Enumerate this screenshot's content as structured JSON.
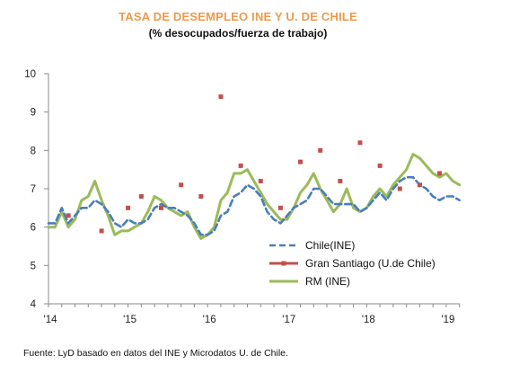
{
  "chart_data": {
    "type": "line",
    "title": "TASA DE DESEMPLEO INE Y U. DE CHILE",
    "subtitle": "(% desocupados/fuerza de trabajo)",
    "source": "Fuente: LyD basado en datos del INE y Microdatos U. de Chile.",
    "ylim": [
      4,
      10
    ],
    "yticks": [
      "4",
      "5",
      "6",
      "7",
      "8",
      "9",
      "10"
    ],
    "ytick_values": [
      4,
      5,
      6,
      7,
      8,
      9,
      10
    ],
    "xticks": [
      "'14",
      "'15",
      "'16",
      "'17",
      "'18",
      "'19"
    ],
    "xtick_values": [
      2014,
      2015,
      2016,
      2017,
      2018,
      2019
    ],
    "xlim": [
      2014,
      2019.17
    ],
    "grid": false,
    "legend": "center-right",
    "series": [
      {
        "name": "Chile(INE)",
        "style": "dashed",
        "color": "#4A7EBB",
        "x": [
          2014.0,
          2014.083,
          2014.167,
          2014.25,
          2014.333,
          2014.417,
          2014.5,
          2014.583,
          2014.667,
          2014.75,
          2014.833,
          2014.917,
          2015.0,
          2015.083,
          2015.167,
          2015.25,
          2015.333,
          2015.417,
          2015.5,
          2015.583,
          2015.667,
          2015.75,
          2015.833,
          2015.917,
          2016.0,
          2016.083,
          2016.167,
          2016.25,
          2016.333,
          2016.417,
          2016.5,
          2016.583,
          2016.667,
          2016.75,
          2016.833,
          2016.917,
          2017.0,
          2017.083,
          2017.167,
          2017.25,
          2017.333,
          2017.417,
          2017.5,
          2017.583,
          2017.667,
          2017.75,
          2017.833,
          2017.917,
          2018.0,
          2018.083,
          2018.167,
          2018.25,
          2018.333,
          2018.417,
          2018.5,
          2018.583,
          2018.667,
          2018.75,
          2018.833,
          2018.917,
          2019.0,
          2019.083,
          2019.167
        ],
        "y": [
          6.1,
          6.1,
          6.5,
          6.1,
          6.3,
          6.5,
          6.5,
          6.7,
          6.6,
          6.4,
          6.1,
          6.0,
          6.2,
          6.1,
          6.1,
          6.2,
          6.5,
          6.6,
          6.5,
          6.5,
          6.4,
          6.3,
          6.1,
          5.8,
          5.8,
          5.9,
          6.3,
          6.4,
          6.8,
          6.9,
          7.1,
          7.0,
          6.8,
          6.4,
          6.2,
          6.1,
          6.3,
          6.5,
          6.6,
          6.7,
          7.0,
          7.0,
          6.8,
          6.6,
          6.6,
          6.6,
          6.6,
          6.4,
          6.5,
          6.7,
          6.9,
          6.7,
          7.0,
          7.2,
          7.3,
          7.3,
          7.1,
          7.0,
          6.8,
          6.7,
          6.8,
          6.8,
          6.7
        ]
      },
      {
        "name": "Gran  Santiago (U.de Chile)",
        "style": "markers",
        "color": "#C0504D",
        "x": [
          2014.25,
          2014.667,
          2015.0,
          2015.167,
          2015.417,
          2015.667,
          2015.917,
          2016.167,
          2016.417,
          2016.667,
          2016.917,
          2017.167,
          2017.417,
          2017.667,
          2017.917,
          2018.167,
          2018.417,
          2018.667,
          2018.917
        ],
        "y": [
          6.3,
          5.9,
          6.5,
          6.8,
          6.5,
          7.1,
          6.8,
          9.4,
          7.6,
          7.2,
          6.5,
          7.7,
          8.0,
          7.2,
          8.2,
          7.6,
          7.0,
          7.1,
          7.4
        ]
      },
      {
        "name": "RM (INE)",
        "style": "solid",
        "color": "#9BBB59",
        "x": [
          2014.0,
          2014.083,
          2014.167,
          2014.25,
          2014.333,
          2014.417,
          2014.5,
          2014.583,
          2014.667,
          2014.75,
          2014.833,
          2014.917,
          2015.0,
          2015.083,
          2015.167,
          2015.25,
          2015.333,
          2015.417,
          2015.5,
          2015.583,
          2015.667,
          2015.75,
          2015.833,
          2015.917,
          2016.0,
          2016.083,
          2016.167,
          2016.25,
          2016.333,
          2016.417,
          2016.5,
          2016.583,
          2016.667,
          2016.75,
          2016.833,
          2016.917,
          2017.0,
          2017.083,
          2017.167,
          2017.25,
          2017.333,
          2017.417,
          2017.5,
          2017.583,
          2017.667,
          2017.75,
          2017.833,
          2017.917,
          2018.0,
          2018.083,
          2018.167,
          2018.25,
          2018.333,
          2018.417,
          2018.5,
          2018.583,
          2018.667,
          2018.75,
          2018.833,
          2018.917,
          2019.0,
          2019.083,
          2019.167
        ],
        "y": [
          6.0,
          6.0,
          6.4,
          6.0,
          6.2,
          6.7,
          6.8,
          7.2,
          6.7,
          6.3,
          5.8,
          5.9,
          5.9,
          6.0,
          6.1,
          6.4,
          6.8,
          6.7,
          6.5,
          6.4,
          6.3,
          6.4,
          6.0,
          5.7,
          5.8,
          6.0,
          6.7,
          6.9,
          7.4,
          7.4,
          7.5,
          7.2,
          6.9,
          6.6,
          6.4,
          6.2,
          6.2,
          6.5,
          6.9,
          7.1,
          7.4,
          7.0,
          6.7,
          6.4,
          6.6,
          7.0,
          6.5,
          6.4,
          6.5,
          6.8,
          7.0,
          6.8,
          7.1,
          7.3,
          7.5,
          7.9,
          7.8,
          7.6,
          7.4,
          7.3,
          7.4,
          7.2,
          7.1
        ]
      }
    ]
  }
}
